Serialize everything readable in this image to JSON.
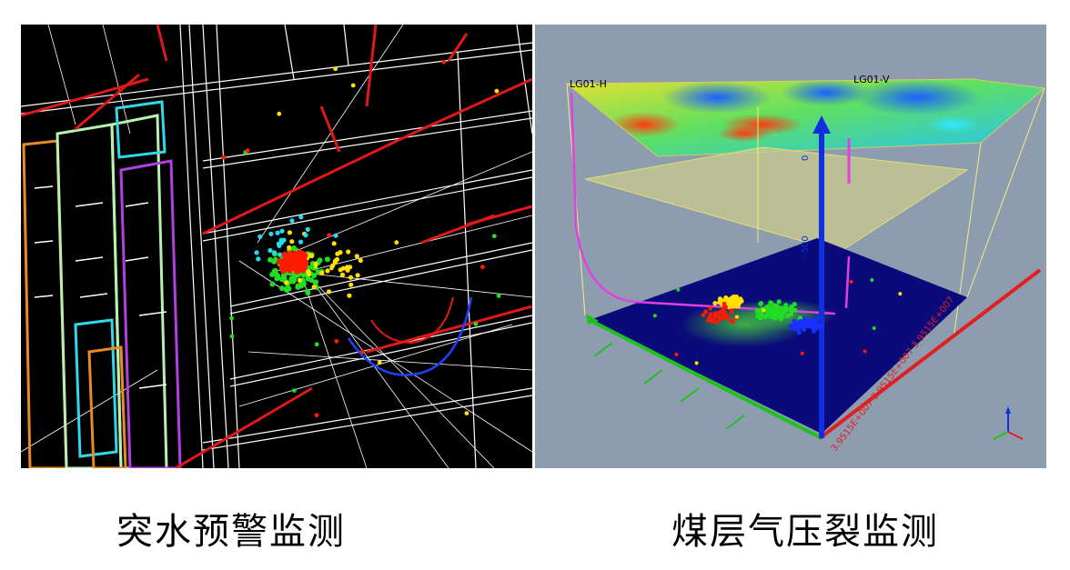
{
  "captions": {
    "left": "突水预警监测",
    "right": "煤层气压裂监测"
  },
  "right_panel": {
    "well_h_label": "LG01-H",
    "well_v_label": "LG01-V"
  },
  "colors": {
    "left_background": "#000000",
    "right_background": "#8d9daf",
    "fault_red": "#e01818",
    "event_red": "#ff1a00",
    "event_yellow": "#ffe000",
    "event_green": "#22dd22",
    "event_cyan": "#22ddee",
    "event_blue": "#1a30ff",
    "well_magenta": "#e040e0",
    "panel_orange": "#e8892a",
    "panel_cyan": "#30d8e8",
    "panel_green": "#b8f0b0",
    "panel_purple": "#b040e0",
    "base_plane": "#0a0a7a",
    "mid_plane": "#c8c890",
    "axis_blue": "#1030e0",
    "axis_green": "#20c020",
    "axis_red": "#e02020"
  },
  "icons": {
    "axis_gizmo": "xyz-axis-icon"
  }
}
